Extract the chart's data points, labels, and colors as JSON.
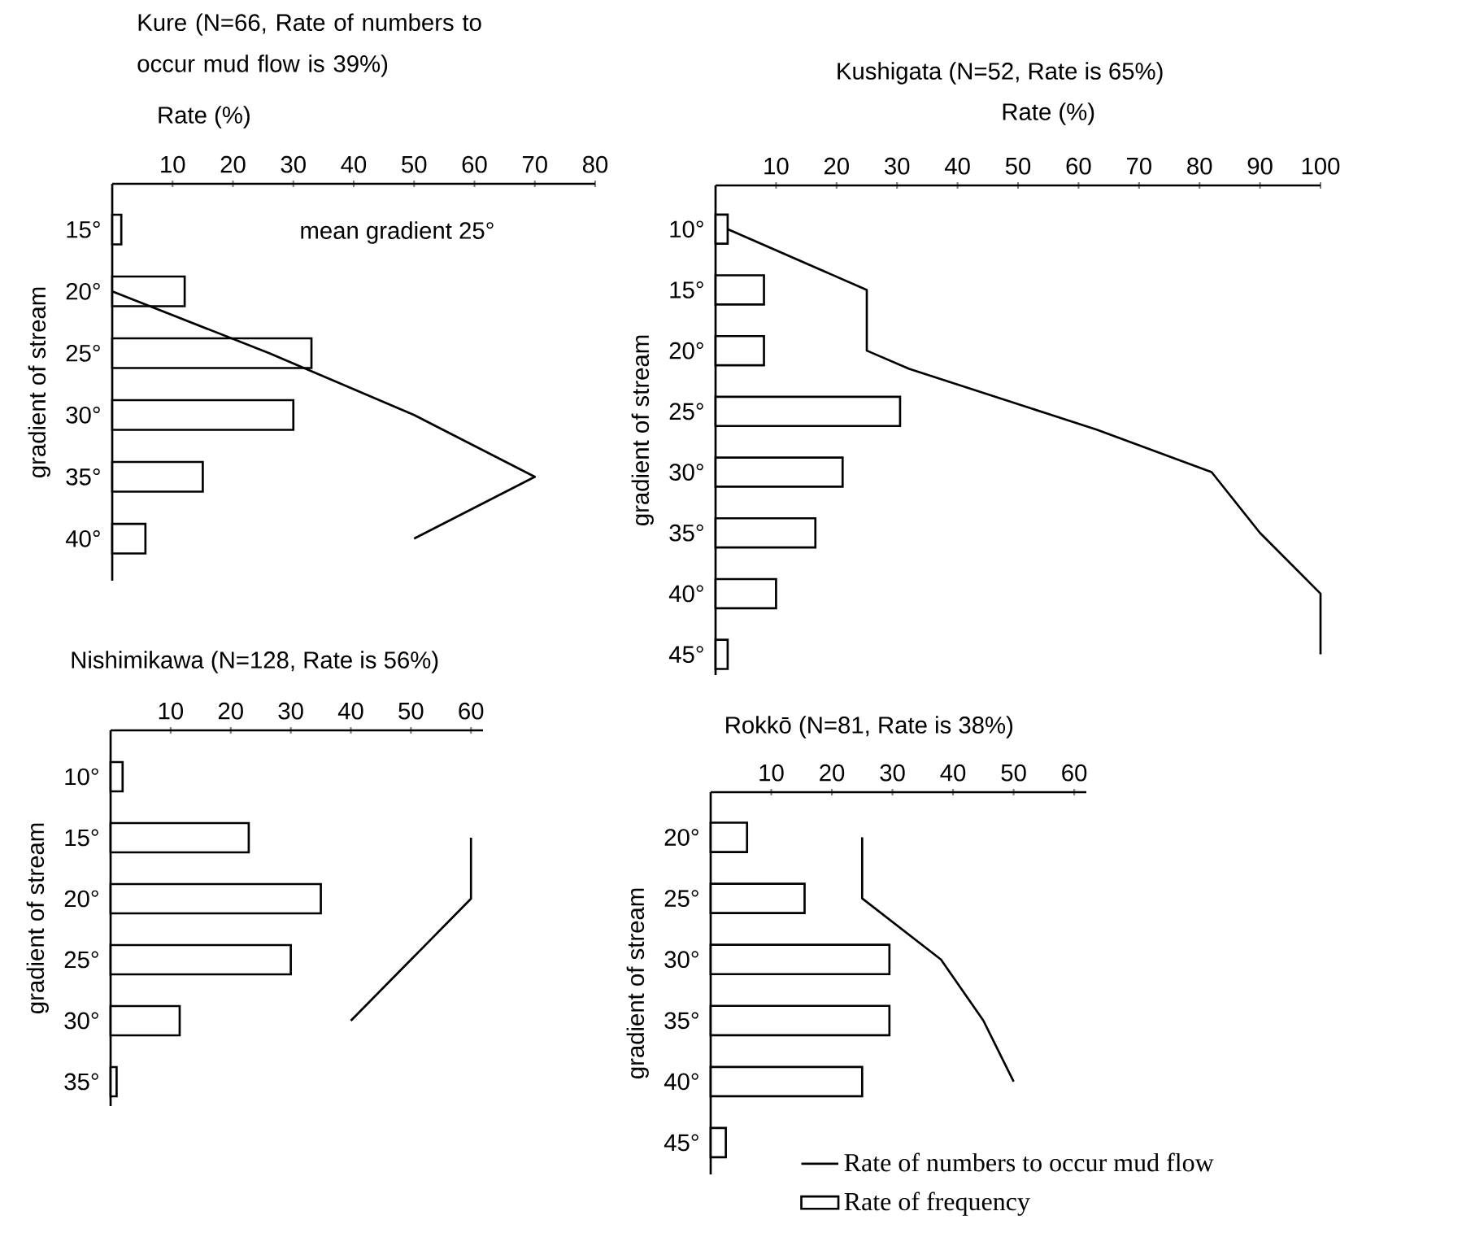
{
  "chart_data": [
    {
      "type": "bar",
      "orientation": "horizontal",
      "title": "Kure  (N=66, Rate of numbers to occur mud flow is 39%)",
      "xlabel": "Rate (%)",
      "ylabel": "gradient of stream",
      "annotations": [
        "mean gradient 25°"
      ],
      "xlim": [
        0,
        80
      ],
      "xticks": [
        10,
        20,
        30,
        40,
        50,
        60,
        70,
        80
      ],
      "ylim": [
        43.4,
        11.3
      ],
      "yticks": [
        {
          "value": 15,
          "label": "15°"
        },
        {
          "value": 20,
          "label": "20°"
        },
        {
          "value": 25,
          "label": "25°"
        },
        {
          "value": 30,
          "label": "30°"
        },
        {
          "value": 35,
          "label": "35°"
        },
        {
          "value": 40,
          "label": "40°"
        }
      ],
      "series": [
        {
          "color": "#ffffff",
          "x": [
            15,
            20,
            25,
            30,
            35,
            40
          ],
          "values": [
            1.5,
            12,
            33,
            30,
            15,
            5.5
          ]
        },
        {
          "type": "line",
          "color": "#000000",
          "x": [
            20,
            25,
            30,
            35,
            40
          ],
          "values": [
            0,
            26,
            50,
            70,
            50
          ]
        }
      ]
    },
    {
      "type": "bar",
      "orientation": "horizontal",
      "title": "Kushigata (N=52, Rate is 65%)",
      "xlabel": "Rate (%)",
      "ylabel": "gradient of stream",
      "xlim": [
        0,
        100
      ],
      "xticks": [
        10,
        20,
        30,
        40,
        50,
        60,
        70,
        80,
        90,
        100
      ],
      "ylim": [
        46.7,
        6.4
      ],
      "yticks": [
        {
          "value": 10,
          "label": "10°"
        },
        {
          "value": 15,
          "label": "15°"
        },
        {
          "value": 20,
          "label": "20°"
        },
        {
          "value": 25,
          "label": "25°"
        },
        {
          "value": 30,
          "label": "30°"
        },
        {
          "value": 35,
          "label": "35°"
        },
        {
          "value": 40,
          "label": "40°"
        },
        {
          "value": 45,
          "label": "45°"
        }
      ],
      "series": [
        {
          "color": "#ffffff",
          "x": [
            10,
            15,
            20,
            25,
            30,
            35,
            40,
            45
          ],
          "values": [
            2,
            8,
            8,
            30.5,
            21,
            16.5,
            10,
            2
          ]
        },
        {
          "type": "line",
          "color": "#000000",
          "x": [
            10,
            15,
            20,
            21.5,
            26.5,
            30,
            35,
            40,
            45
          ],
          "values": [
            2,
            25,
            25,
            32,
            63,
            82,
            90,
            100,
            100
          ]
        }
      ]
    },
    {
      "type": "bar",
      "orientation": "horizontal",
      "title": "Nishimikawa (N=128, Rate is 56%)",
      "ylabel": "gradient of stream",
      "xlim": [
        0,
        62
      ],
      "xticks": [
        10,
        20,
        30,
        40,
        50,
        60
      ],
      "ylim": [
        37,
        6.2
      ],
      "yticks": [
        {
          "value": 10,
          "label": "10°"
        },
        {
          "value": 15,
          "label": "15°"
        },
        {
          "value": 20,
          "label": "20°"
        },
        {
          "value": 25,
          "label": "25°"
        },
        {
          "value": 30,
          "label": "30°"
        },
        {
          "value": 35,
          "label": "35°"
        }
      ],
      "series": [
        {
          "color": "#ffffff",
          "x": [
            10,
            15,
            20,
            25,
            30,
            35
          ],
          "values": [
            2,
            23,
            35,
            30,
            11.5,
            1
          ]
        },
        {
          "type": "line",
          "color": "#000000",
          "x": [
            15,
            20,
            25,
            30
          ],
          "values": [
            60,
            60,
            50,
            40
          ]
        }
      ]
    },
    {
      "type": "bar",
      "orientation": "horizontal",
      "title": "Rokkō (N=81, Rate is 38%)",
      "ylabel": "gradient of stream",
      "xlim": [
        0,
        62
      ],
      "xticks": [
        10,
        20,
        30,
        40,
        50,
        60
      ],
      "ylim": [
        47.6,
        16.3
      ],
      "yticks": [
        {
          "value": 20,
          "label": "20°"
        },
        {
          "value": 25,
          "label": "25°"
        },
        {
          "value": 30,
          "label": "30°"
        },
        {
          "value": 35,
          "label": "35°"
        },
        {
          "value": 40,
          "label": "40°"
        },
        {
          "value": 45,
          "label": "45°"
        }
      ],
      "legend": "bottom right",
      "series": [
        {
          "type": "line",
          "name": "Rate of numbers to occur mud flow",
          "color": "#000000",
          "x": [
            20,
            25,
            30,
            35,
            40
          ],
          "values": [
            25,
            25,
            38,
            45,
            50
          ]
        },
        {
          "name": "Rate of frequency",
          "color": "#ffffff",
          "x": [
            20,
            25,
            30,
            35,
            40,
            45
          ],
          "values": [
            6,
            15.5,
            29.5,
            29.5,
            25,
            2.5
          ]
        }
      ]
    }
  ]
}
